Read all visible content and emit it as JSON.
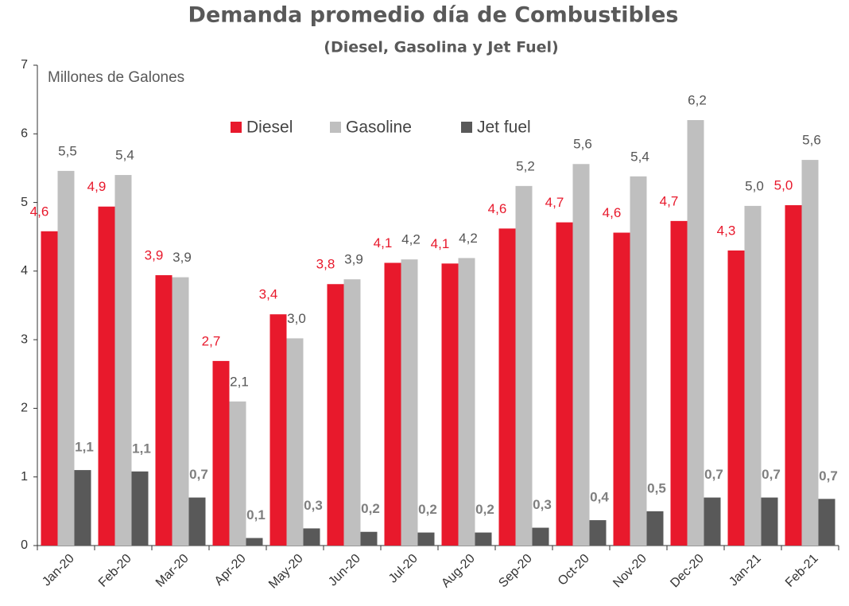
{
  "chart_data": {
    "type": "bar",
    "title": "Demanda promedio día de Combustibles",
    "subtitle": "(Diesel, Gasolina y Jet Fuel)",
    "y_axis_label": "Millones de Galones",
    "categories": [
      "Jan-20",
      "Feb-20",
      "Mar-20",
      "Apr-20",
      "May-20",
      "Jun-20",
      "Jul-20",
      "Aug-20",
      "Sep-20",
      "Oct-20",
      "Nov-20",
      "Dec-20",
      "Jan-21",
      "Feb-21"
    ],
    "series": [
      {
        "name": "Diesel",
        "color": "#e8192c",
        "values": [
          4.58,
          4.94,
          3.94,
          2.69,
          3.37,
          3.81,
          4.12,
          4.11,
          4.62,
          4.71,
          4.56,
          4.73,
          4.3,
          4.96
        ],
        "value_labels": [
          "4,6",
          "4,9",
          "3,9",
          "2,7",
          "3,4",
          "3,8",
          "4,1",
          "4,1",
          "4,6",
          "4,7",
          "4,6",
          "4,7",
          "4,3",
          "5,0"
        ]
      },
      {
        "name": "Gasoline",
        "color": "#bfbfbf",
        "values": [
          5.46,
          5.4,
          3.91,
          2.1,
          3.02,
          3.88,
          4.17,
          4.19,
          5.24,
          5.56,
          5.38,
          6.2,
          4.95,
          5.62
        ],
        "value_labels": [
          "5,5",
          "5,4",
          "3,9",
          "2,1",
          "3,0",
          "3,9",
          "4,2",
          "4,2",
          "5,2",
          "5,6",
          "5,4",
          "6,2",
          "5,0",
          "5,6"
        ]
      },
      {
        "name": "Jet fuel",
        "color": "#595959",
        "values": [
          1.1,
          1.08,
          0.7,
          0.11,
          0.25,
          0.2,
          0.19,
          0.19,
          0.26,
          0.37,
          0.5,
          0.7,
          0.7,
          0.68
        ],
        "value_labels": [
          "1,1",
          "1,1",
          "0,7",
          "0,1",
          "0,3",
          "0,2",
          "0,2",
          "0,2",
          "0,3",
          "0,4",
          "0,5",
          "0,7",
          "0,7",
          "0,7"
        ]
      }
    ],
    "ylim": [
      0,
      7
    ],
    "yticks": [
      0,
      1,
      2,
      3,
      4,
      5,
      6,
      7
    ],
    "grid": false,
    "legend": "top"
  }
}
